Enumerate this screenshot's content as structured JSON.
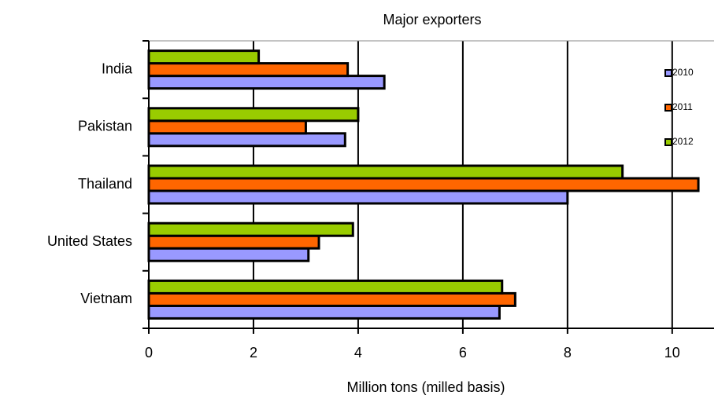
{
  "chart_data": {
    "type": "hbar",
    "title": "Major exporters",
    "x_label": "Million tons (milled basis)",
    "categories": [
      "India",
      "Pakistan",
      "Thailand",
      "United States",
      "Vietnam"
    ],
    "series": [
      {
        "name": "2010",
        "color": "#9999ff",
        "values": [
          4.5,
          3.75,
          8.0,
          3.05,
          6.7
        ]
      },
      {
        "name": "2011",
        "color": "#ff6600",
        "values": [
          3.8,
          3.0,
          10.5,
          3.25,
          7.0
        ]
      },
      {
        "name": "2012",
        "color": "#99cc00",
        "values": [
          2.1,
          4.0,
          9.05,
          3.9,
          6.75
        ]
      }
    ],
    "xlim": [
      0,
      10.8
    ],
    "xticks": [
      0,
      2,
      4,
      6,
      8,
      10
    ],
    "grid": true
  }
}
